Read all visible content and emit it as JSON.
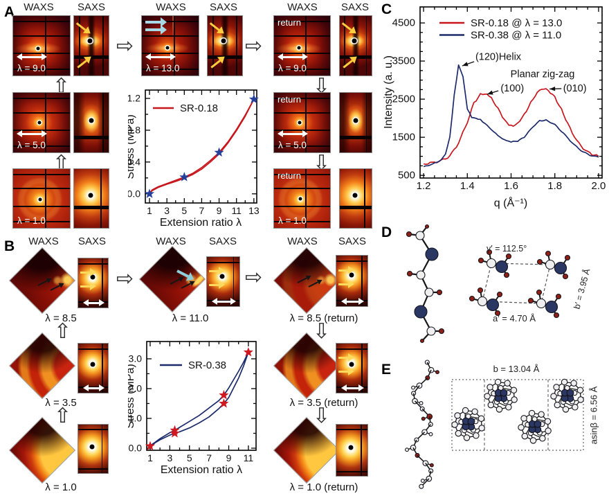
{
  "panels": {
    "a": {
      "label": "A",
      "col_headers": [
        "WAXS",
        "SAXS",
        "WAXS",
        "SAXS",
        "WAXS",
        "SAXS"
      ],
      "return_label": "return",
      "left_rows": [
        {
          "lambda": "λ = 9.0"
        },
        {
          "lambda": "λ = 5.0"
        },
        {
          "lambda": "λ = 1.0"
        }
      ],
      "mid_row": {
        "lambda": "λ = 13.0"
      },
      "right_rows": [
        {
          "lambda": "λ = 9.0"
        },
        {
          "lambda": "λ = 5.0"
        },
        {
          "lambda": "λ = 1.0"
        }
      ]
    },
    "b": {
      "label": "B",
      "col_headers": [
        "WAXS",
        "SAXS",
        "WAXS",
        "SAXS",
        "WAXS",
        "SAXS"
      ],
      "left_rows": [
        {
          "lambda": "λ = 8.5"
        },
        {
          "lambda": "λ = 3.5"
        },
        {
          "lambda": "λ = 1.0"
        }
      ],
      "mid_row": {
        "lambda": "λ = 11.0"
      },
      "right_rows": [
        {
          "lambda": "λ = 8.5 (return)"
        },
        {
          "lambda": "λ = 3.5 (return)"
        },
        {
          "lambda": "λ = 1.0 (return)"
        }
      ]
    },
    "c": {
      "label": "C"
    },
    "d": {
      "label": "D",
      "gamma": "γ′ = 112.5°",
      "a_axis": "a′ = 4.70 Å",
      "b_axis": "b′ = 3.95 Å"
    },
    "e": {
      "label": "E",
      "b_axis": "b = 13.04 Å",
      "asinb": "asinβ = 6.56 Å"
    }
  },
  "chart_data": [
    {
      "id": "chartA",
      "type": "line",
      "title": "",
      "xlabel": "Extension ratio λ",
      "ylabel": "Stress (MPa)",
      "xlim": [
        0.52,
        13.33
      ],
      "ylim": [
        -0.115,
        1.305
      ],
      "xticks": [
        1,
        3,
        5,
        7,
        9,
        11,
        13
      ],
      "xtick_labels": [
        "1",
        "3",
        "5",
        "7",
        "9",
        "11",
        "13"
      ],
      "xminor": [
        2,
        4,
        6,
        8,
        10,
        12
      ],
      "yticks": [
        0.0,
        0.4,
        0.8,
        1.2
      ],
      "ytick_labels": [
        "0.0",
        "0.4",
        "0.8",
        "1.2"
      ],
      "yminor": [
        0.2,
        0.6,
        1.0
      ],
      "grid": false,
      "legend_position": "top-left",
      "legend": [
        {
          "label": "SR-0.18",
          "color": "#c8161d"
        }
      ],
      "series": [
        {
          "name": "SR-0.18 load",
          "color": "#c8161d",
          "x": [
            1,
            1.3,
            2,
            3,
            4,
            5,
            6,
            7,
            8,
            9,
            10,
            11,
            12,
            13
          ],
          "y": [
            0.0,
            0.05,
            0.09,
            0.13,
            0.17,
            0.21,
            0.26,
            0.33,
            0.42,
            0.52,
            0.65,
            0.81,
            0.99,
            1.19
          ]
        },
        {
          "name": "SR-0.18 return",
          "color": "#c8161d",
          "x": [
            1,
            1.3,
            2,
            3,
            4,
            5,
            6,
            7,
            8,
            9,
            10,
            11,
            12,
            13
          ],
          "y": [
            0.0,
            0.04,
            0.08,
            0.12,
            0.155,
            0.195,
            0.245,
            0.31,
            0.4,
            0.5,
            0.635,
            0.795,
            0.975,
            1.19
          ]
        }
      ],
      "markers": {
        "shape": "star",
        "color": "#24409a",
        "size": 6,
        "points": [
          [
            1,
            0.0
          ],
          [
            5,
            0.21
          ],
          [
            9,
            0.52
          ],
          [
            13,
            1.19
          ]
        ]
      }
    },
    {
      "id": "chartB",
      "type": "line",
      "title": "",
      "xlabel": "Extension ratio λ",
      "ylabel": "Stress (MPa)",
      "xlim": [
        0.65,
        11.78
      ],
      "ylim": [
        -0.07,
        3.58
      ],
      "xticks": [
        1,
        3,
        5,
        7,
        9,
        11
      ],
      "xtick_labels": [
        "1",
        "3",
        "5",
        "7",
        "9",
        "11"
      ],
      "xminor": [
        2,
        4,
        6,
        8,
        10
      ],
      "yticks": [
        0.0,
        1.0,
        2.0,
        3.0
      ],
      "ytick_labels": [
        "0.0",
        "1.0",
        "2.0",
        "3.0"
      ],
      "yminor": [
        0.5,
        1.5,
        2.5
      ],
      "grid": false,
      "legend_position": "top-left",
      "legend": [
        {
          "label": "SR-0.38",
          "color": "#1b2a6b"
        }
      ],
      "series": [
        {
          "name": "SR-0.38 loading",
          "color": "#1b2a6b",
          "x": [
            1,
            1.5,
            2,
            3,
            3.5,
            4,
            5,
            6,
            7,
            8,
            8.5,
            9,
            10,
            10.5,
            11
          ],
          "y": [
            0.05,
            0.18,
            0.28,
            0.44,
            0.5,
            0.55,
            0.68,
            0.85,
            1.05,
            1.33,
            1.5,
            1.7,
            2.35,
            2.75,
            3.22
          ]
        },
        {
          "name": "SR-0.38 unloading",
          "color": "#1b2a6b",
          "x": [
            11,
            10.5,
            10,
            9,
            8.5,
            8,
            7,
            6,
            5,
            4,
            3.5,
            3,
            2,
            1.5,
            1
          ],
          "y": [
            3.22,
            2.88,
            2.58,
            2.02,
            1.78,
            1.6,
            1.35,
            1.1,
            0.9,
            0.7,
            0.6,
            0.52,
            0.32,
            0.2,
            0.08
          ]
        }
      ],
      "markers": {
        "shape": "star",
        "color": "#d01820",
        "size": 6,
        "points": [
          [
            1,
            0.07
          ],
          [
            3.5,
            0.5
          ],
          [
            3.5,
            0.6
          ],
          [
            8.5,
            1.5
          ],
          [
            8.5,
            1.78
          ],
          [
            11,
            3.22
          ]
        ]
      }
    },
    {
      "id": "chartC",
      "type": "line",
      "title": "",
      "xlabel": "q (Å⁻¹)",
      "ylabel": "Intensity (a. u.)",
      "xlim": [
        1.184,
        2.016
      ],
      "ylim": [
        430,
        4920
      ],
      "xticks": [
        1.2,
        1.4,
        1.6,
        1.8,
        2.0
      ],
      "xtick_labels": [
        "1.2",
        "1.4",
        "1.6",
        "1.8",
        "2.0"
      ],
      "xminor": [
        1.25,
        1.3,
        1.35,
        1.45,
        1.5,
        1.55,
        1.65,
        1.7,
        1.75,
        1.85,
        1.9,
        1.95
      ],
      "yticks": [
        500,
        1500,
        2500,
        3500,
        4500
      ],
      "ytick_labels": [
        "500",
        "1500",
        "2500",
        "3500",
        "4500"
      ],
      "yminor": [
        750,
        1000,
        1250,
        1750,
        2000,
        2250,
        2750,
        3000,
        3250,
        3750,
        4000,
        4250
      ],
      "grid": false,
      "legend_position": "top-left",
      "legend": [
        {
          "label": "SR-0.18  @ λ = 13.0",
          "color": "#c8161d"
        },
        {
          "label": "SR-0.38  @ λ = 11.0",
          "color": "#1b2a6b"
        }
      ],
      "annotations": [
        {
          "text": "(120)Helix",
          "x": 1.437,
          "y": 3620,
          "anchor": "start",
          "arrow_from": [
            1.431,
            3484
          ],
          "arrow_to": [
            1.377,
            3375
          ]
        },
        {
          "text": "(100)",
          "x": 1.552,
          "y": 2790,
          "anchor": "start",
          "arrow_from": [
            1.542,
            2721
          ],
          "arrow_to": [
            1.491,
            2630
          ]
        },
        {
          "text": "Planar zig-zag",
          "x": 1.744,
          "y": 3170,
          "anchor": "middle"
        },
        {
          "text": "(010)",
          "x": 1.838,
          "y": 2790,
          "anchor": "start",
          "arrow_from": [
            1.83,
            2776
          ],
          "arrow_to": [
            1.776,
            2767
          ]
        }
      ],
      "series": [
        {
          "name": "SR-0.18 @ λ = 13.0",
          "color": "#c8161d",
          "noise": 26,
          "x": [
            1.2,
            1.24,
            1.28,
            1.32,
            1.36,
            1.4,
            1.43,
            1.46,
            1.48,
            1.5,
            1.53,
            1.56,
            1.58,
            1.6,
            1.62,
            1.65,
            1.68,
            1.71,
            1.74,
            1.77,
            1.8,
            1.83,
            1.86,
            1.9,
            1.94,
            1.97,
            2.0
          ],
          "y": [
            800,
            830,
            880,
            1000,
            1350,
            1900,
            2400,
            2620,
            2650,
            2600,
            2350,
            2050,
            1870,
            1800,
            1830,
            2000,
            2300,
            2600,
            2780,
            2730,
            2550,
            2230,
            1850,
            1400,
            1150,
            1050,
            1000
          ]
        },
        {
          "name": "SR-0.38 @ λ = 11.0",
          "color": "#1b2a6b",
          "noise": 10,
          "x": [
            1.2,
            1.24,
            1.28,
            1.3,
            1.32,
            1.34,
            1.36,
            1.38,
            1.4,
            1.42,
            1.44,
            1.46,
            1.5,
            1.54,
            1.58,
            1.6,
            1.63,
            1.66,
            1.7,
            1.73,
            1.76,
            1.8,
            1.84,
            1.88,
            1.92,
            1.96,
            2.0
          ],
          "y": [
            730,
            790,
            900,
            1050,
            1500,
            2600,
            3400,
            3100,
            2250,
            2020,
            1990,
            1960,
            1760,
            1540,
            1400,
            1380,
            1400,
            1500,
            1780,
            1930,
            1950,
            1830,
            1600,
            1350,
            1150,
            1030,
            980
          ]
        }
      ]
    }
  ]
}
